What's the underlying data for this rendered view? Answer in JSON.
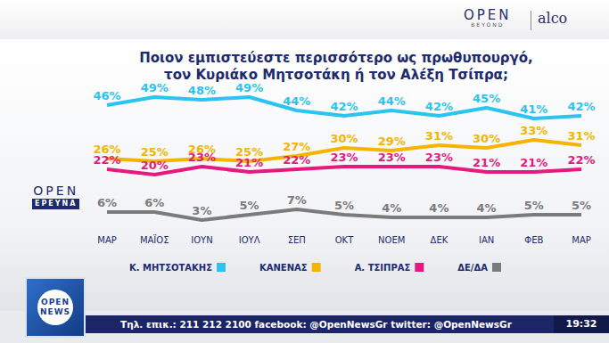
{
  "chart_data": {
    "type": "line",
    "title": "Ποιον εμπιστεύεστε περισσότερο ως πρωθυπουργό,\nτον Κυριάκο Μητσοτάκη ή τον Αλέξη Τσίπρα;",
    "categories": [
      "ΜΑΡ",
      "ΜΑΪΟΣ",
      "ΙΟΥΝ",
      "ΙΟΥΛ",
      "ΣΕΠ",
      "ΟΚΤ",
      "ΝΟΕΜ",
      "ΔΕΚ",
      "ΙΑΝ",
      "ΦΕΒ",
      "ΜΑΡ"
    ],
    "series": [
      {
        "name": "Κ. ΜΗΤΣΟΤΑΚΗΣ",
        "color": "#2bc3ef",
        "values": [
          46,
          49,
          48,
          49,
          44,
          42,
          44,
          42,
          45,
          41,
          42
        ],
        "value_labels": [
          "46%",
          "49%",
          "48%",
          "49%",
          "44%",
          "42%",
          "44%",
          "42%",
          "45%",
          "41%",
          "42%"
        ]
      },
      {
        "name": "ΚΑΝΕΝΑΣ",
        "color": "#f4b400",
        "values": [
          26,
          25,
          26,
          25,
          27,
          30,
          29,
          31,
          30,
          33,
          31
        ],
        "value_labels": [
          "26%",
          "25%",
          "26%",
          "25%",
          "27%",
          "30%",
          "29%",
          "31%",
          "30%",
          "33%",
          "31%"
        ]
      },
      {
        "name": "Α. ΤΣΙΠΡΑΣ",
        "color": "#e5197e",
        "values": [
          22,
          20,
          23,
          21,
          22,
          23,
          23,
          23,
          21,
          21,
          22
        ],
        "value_labels": [
          "22%",
          "20%",
          "23%",
          "21%",
          "22%",
          "23%",
          "23%",
          "23%",
          "21%",
          "21%",
          "22%"
        ]
      },
      {
        "name": "ΔΕ/ΔΑ",
        "color": "#7b7b7b",
        "values": [
          6,
          6,
          3,
          5,
          7,
          5,
          4,
          4,
          4,
          5,
          5
        ],
        "value_labels": [
          "6%",
          "6%",
          "3%",
          "5%",
          "7%",
          "5%",
          "4%",
          "4%",
          "4%",
          "5%",
          "5%"
        ]
      }
    ],
    "ylim": [
      0,
      55
    ],
    "grid": false,
    "legend": "bottom",
    "data_labels": true,
    "tick_labels": "x"
  },
  "header": {
    "logo": "OPEN",
    "logo_sub": "BEYOND",
    "partner": "alco"
  },
  "side_logo": {
    "line1": "OPEN",
    "line2": "ΕΡΕΥΝΑ"
  },
  "news_logo": {
    "line1": "OPEN",
    "line2": "NEWS"
  },
  "ticker": {
    "text": "Τηλ. επικ.: 211 212 2100 facebook: @OpenNewsGr twitter: @OpenNewsGr",
    "time": "19:32"
  }
}
